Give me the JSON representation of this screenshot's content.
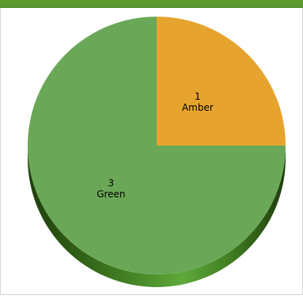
{
  "chart_data": {
    "type": "pie",
    "style": "3d",
    "slices": [
      {
        "label": "Amber",
        "value": 1,
        "color": "#e6a42e"
      },
      {
        "label": "Green",
        "value": 3,
        "color": "#6aa857"
      }
    ]
  },
  "colors": {
    "header_bar": "#5a9a2e",
    "pie_side_dark": "#2f5a15",
    "pie_side_light": "#58a236"
  }
}
